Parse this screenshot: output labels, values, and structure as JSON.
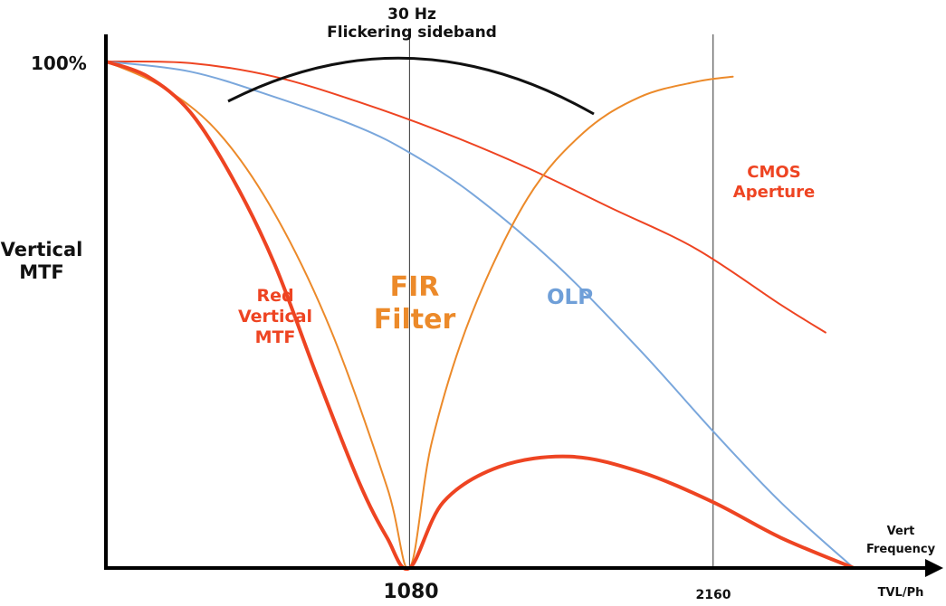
{
  "chart_data": {
    "type": "line",
    "ylabel": "Vertical\nMTF",
    "y_tick_label": "100%",
    "xlabel_lines": [
      "Vert",
      "Frequency",
      "TVL/Ph"
    ],
    "x_tick_labels": [
      "1080",
      "2160"
    ],
    "x_ticks": [
      1080,
      2160
    ],
    "xlim": [
      0,
      2660
    ],
    "ylim": [
      0,
      1
    ],
    "annotations": {
      "top_title": "30 Hz\nFlickering sideband",
      "cmos": "CMOS\nAperture",
      "fir": "FIR\nFilter",
      "olp": "OLP",
      "red_mtf": "Red\nVertical\nMTF"
    },
    "series": [
      {
        "key": "cmos",
        "color": "#ee4422",
        "x": [
          0,
          300,
          600,
          900,
          1200,
          1500,
          1800,
          2100,
          2400,
          2560
        ],
        "y": [
          1.0,
          0.997,
          0.97,
          0.92,
          0.86,
          0.79,
          0.71,
          0.63,
          0.52,
          0.465
        ]
      },
      {
        "key": "olp",
        "color": "#7aa7dc",
        "x": [
          0,
          300,
          600,
          900,
          1080,
          1300,
          1600,
          1900,
          2160,
          2400,
          2660
        ],
        "y": [
          1.0,
          0.98,
          0.93,
          0.87,
          0.82,
          0.74,
          0.6,
          0.43,
          0.27,
          0.13,
          0.0
        ]
      },
      {
        "key": "fir",
        "color": "#ec8a2a",
        "x": [
          0,
          200,
          400,
          600,
          800,
          1000,
          1080,
          1160,
          1300,
          1500,
          1700,
          1900,
          2100,
          2230
        ],
        "y": [
          1.0,
          0.95,
          0.86,
          0.7,
          0.47,
          0.16,
          0.0,
          0.25,
          0.5,
          0.73,
          0.86,
          0.93,
          0.96,
          0.97
        ]
      },
      {
        "key": "red_mtf",
        "color": "#ee4422",
        "x": [
          0,
          150,
          300,
          450,
          600,
          750,
          900,
          1000,
          1080,
          1200,
          1400,
          1650,
          1900,
          2160,
          2400,
          2660
        ],
        "y": [
          1.0,
          0.97,
          0.9,
          0.77,
          0.6,
          0.38,
          0.17,
          0.06,
          0.0,
          0.13,
          0.2,
          0.22,
          0.19,
          0.13,
          0.06,
          0.0
        ]
      }
    ]
  }
}
